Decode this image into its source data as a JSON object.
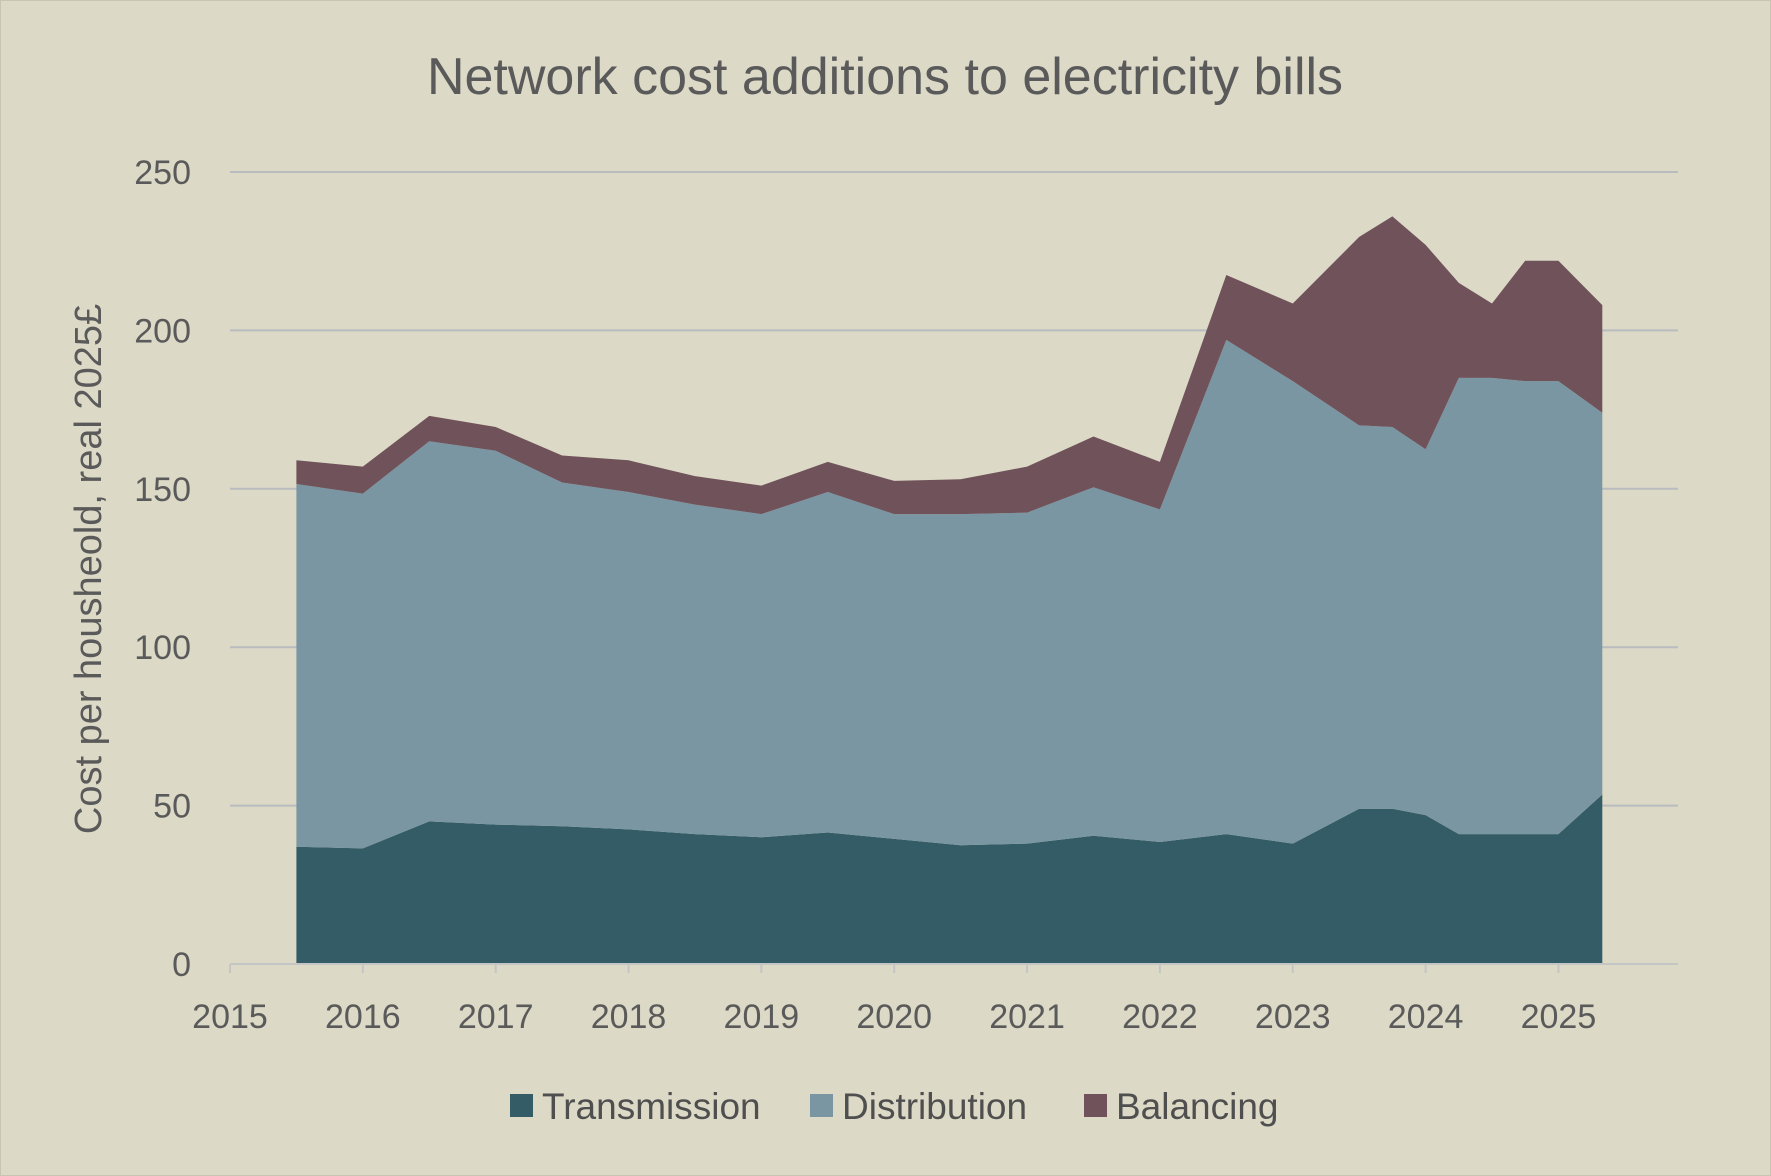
{
  "chart_data": {
    "type": "area",
    "stacked": true,
    "title": "Network cost additions to electricity bills",
    "xlabel": "",
    "ylabel": "Cost per housheold, real 2025£",
    "xlim": [
      2015,
      2025.9
    ],
    "ylim": [
      0,
      250
    ],
    "x_ticks": [
      "2015",
      "2016",
      "2017",
      "2018",
      "2019",
      "2020",
      "2021",
      "2022",
      "2023",
      "2024",
      "2025"
    ],
    "y_ticks": [
      "0",
      "50",
      "100",
      "150",
      "200",
      "250"
    ],
    "grid": true,
    "legend_position": "bottom",
    "x": [
      2015.5,
      2016.0,
      2016.5,
      2017.0,
      2017.5,
      2018.0,
      2018.5,
      2019.0,
      2019.5,
      2020.0,
      2020.5,
      2021.0,
      2021.5,
      2022.0,
      2022.5,
      2023.0,
      2023.5,
      2023.75,
      2024.0,
      2024.25,
      2024.5,
      2024.75,
      2025.0,
      2025.33
    ],
    "series": [
      {
        "name": "Transmission",
        "color": "#335c66",
        "values": [
          37,
          36.5,
          45,
          44,
          43.5,
          42.5,
          41,
          40,
          41.5,
          39.5,
          37.5,
          38,
          40.5,
          38.5,
          41,
          38,
          49,
          49,
          47,
          41,
          41,
          41,
          41,
          53.5
        ]
      },
      {
        "name": "Distribution",
        "color": "#7a96a3",
        "values": [
          114.5,
          112,
          120,
          118,
          108.5,
          106.5,
          104,
          102,
          107.5,
          102.5,
          104.5,
          104.5,
          110,
          105,
          156,
          146,
          121,
          120.5,
          115.5,
          144,
          144,
          143,
          143,
          120.5
        ]
      },
      {
        "name": "Balancing",
        "color": "#6f525a",
        "values": [
          7.5,
          8.5,
          8,
          7.5,
          8.5,
          10,
          9,
          9,
          9.5,
          10.5,
          11,
          14.5,
          16,
          15,
          20.5,
          24.5,
          59.5,
          66.5,
          64.5,
          30,
          23.5,
          38,
          38,
          34
        ]
      }
    ]
  }
}
